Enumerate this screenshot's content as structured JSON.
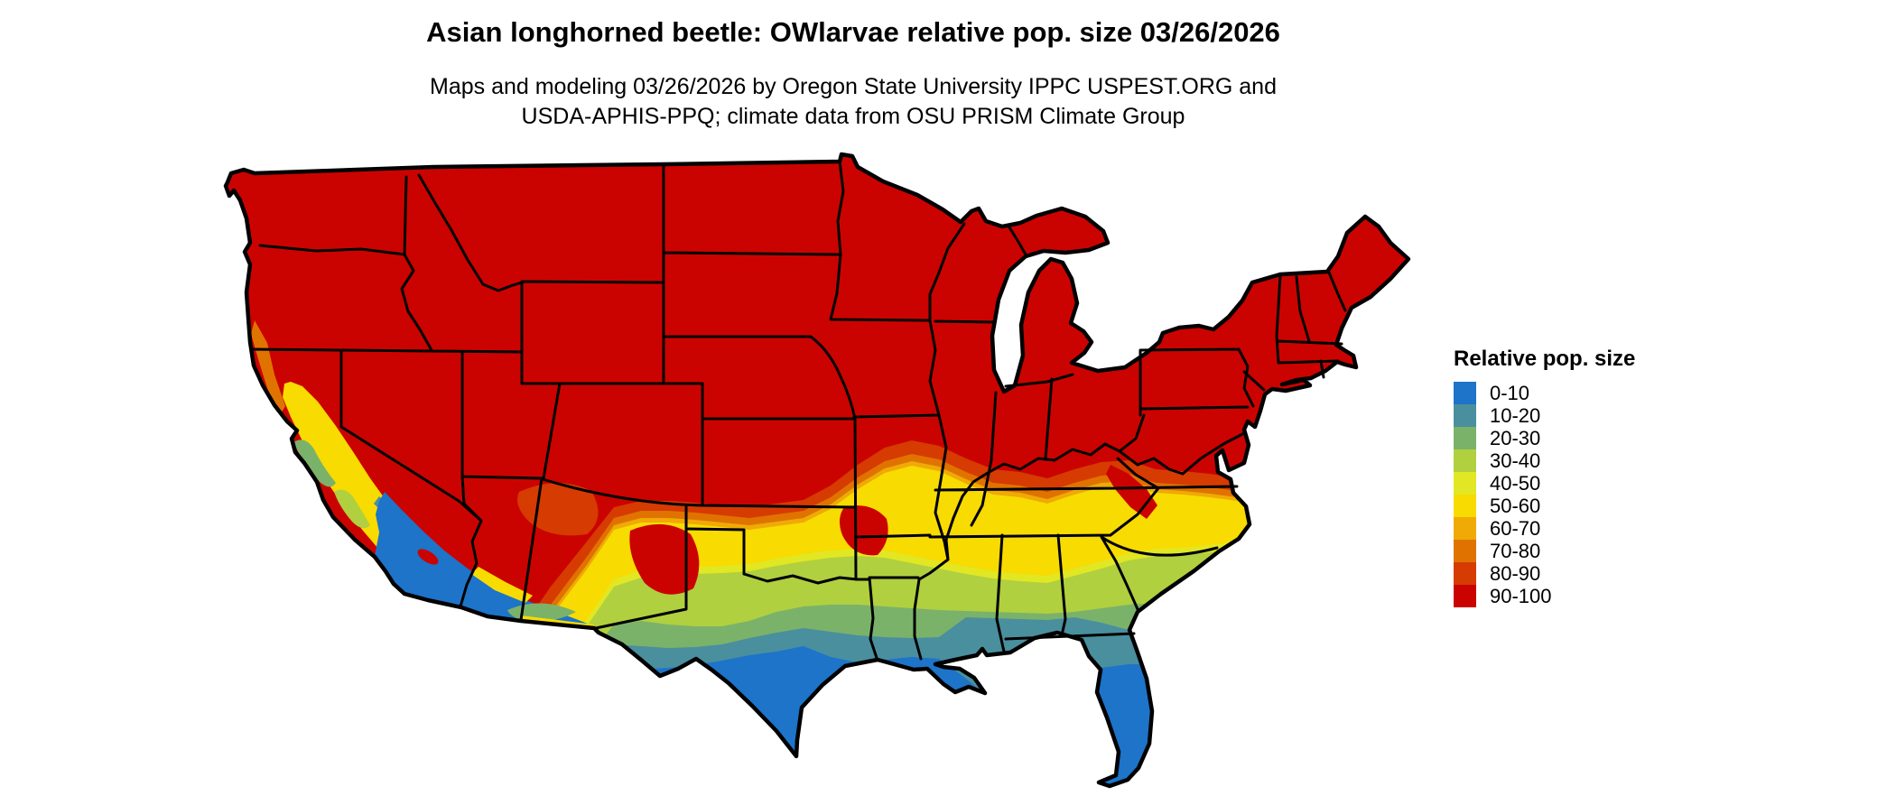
{
  "header": {
    "title": "Asian longhorned beetle: OWlarvae relative pop. size 03/26/2026",
    "subtitle_line1": "Maps and modeling 03/26/2026 by Oregon State University IPPC USPEST.ORG and",
    "subtitle_line2": "USDA-APHIS-PPQ; climate data from OSU PRISM Climate Group"
  },
  "legend": {
    "title": "Relative pop. size",
    "items": [
      {
        "label": "0-10",
        "color": "#1D74C9"
      },
      {
        "label": "10-20",
        "color": "#4A8F9E"
      },
      {
        "label": "20-30",
        "color": "#7BB26A"
      },
      {
        "label": "30-40",
        "color": "#B0D03F"
      },
      {
        "label": "40-50",
        "color": "#E2E723"
      },
      {
        "label": "50-60",
        "color": "#F8DB00"
      },
      {
        "label": "60-70",
        "color": "#EFAA06"
      },
      {
        "label": "70-80",
        "color": "#E07300"
      },
      {
        "label": "80-90",
        "color": "#D63B02"
      },
      {
        "label": "90-100",
        "color": "#CB0300"
      }
    ]
  },
  "map": {
    "region": "Continental United States choropleth of relative population size",
    "outline_color": "#000000",
    "water_background": "#FFFFFF"
  }
}
